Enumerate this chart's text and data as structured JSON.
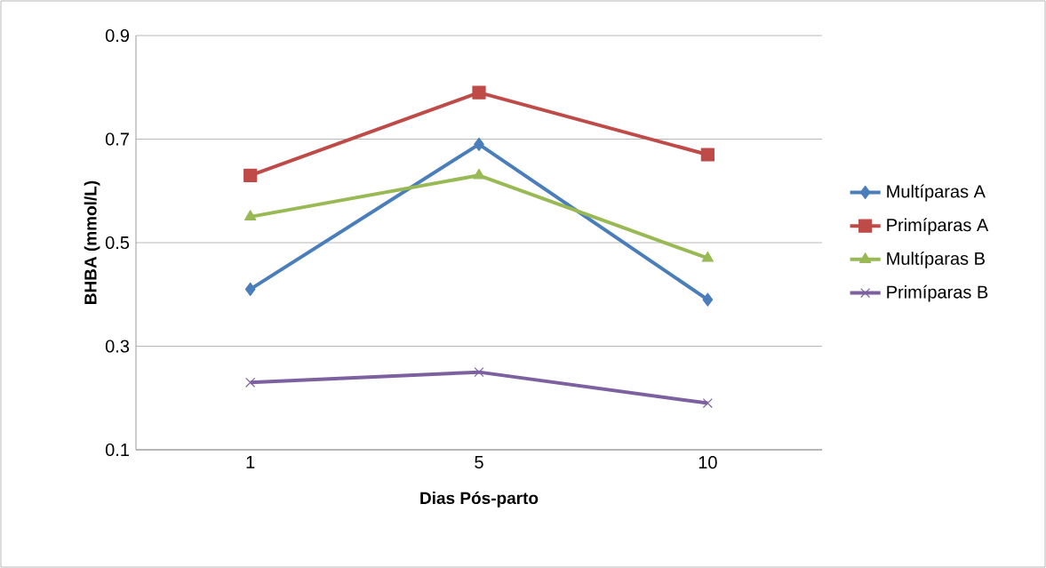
{
  "chart_data": {
    "type": "line",
    "xlabel": "Dias Pós-parto",
    "ylabel": "BHBA (mmol/L)",
    "categories": [
      "1",
      "5",
      "10"
    ],
    "series": [
      {
        "name": "Multíparas A",
        "color": "#4a7ebb",
        "marker": "diamond",
        "values": [
          0.41,
          0.69,
          0.39
        ]
      },
      {
        "name": "Primíparas A",
        "color": "#be4b48",
        "marker": "square",
        "values": [
          0.63,
          0.79,
          0.67
        ]
      },
      {
        "name": "Multíparas B",
        "color": "#98b954",
        "marker": "triangle",
        "values": [
          0.55,
          0.63,
          0.47
        ]
      },
      {
        "name": "Primíparas B",
        "color": "#7d60a0",
        "marker": "cross",
        "values": [
          0.23,
          0.25,
          0.19
        ]
      }
    ],
    "ylim": [
      0.1,
      0.9
    ],
    "yticks": [
      0.1,
      0.3,
      0.5,
      0.7,
      0.9
    ],
    "grid": "y",
    "legend": "right",
    "line_style": "solid"
  }
}
